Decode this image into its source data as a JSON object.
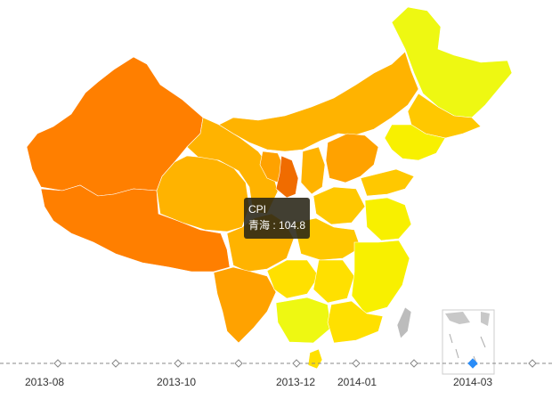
{
  "map": {
    "tooltip": {
      "series": "CPI",
      "region": "青海",
      "value": "104.8"
    },
    "colors": {
      "deep_orange": "#ff7f00",
      "orange": "#ffa200",
      "amber": "#ffb300",
      "gold": "#ffc800",
      "yellow": "#ffe000",
      "lemon": "#f8f000",
      "lime_yellow": "#eef812",
      "highlight": "#f06c00",
      "taiwan_gray": "#bcbcbc"
    }
  },
  "timeline": {
    "labels": [
      "2013-08",
      "2013-10",
      "2013-12",
      "2014-01",
      "2014-03"
    ],
    "current": "2014-03",
    "accent": "#2a8cf7"
  }
}
